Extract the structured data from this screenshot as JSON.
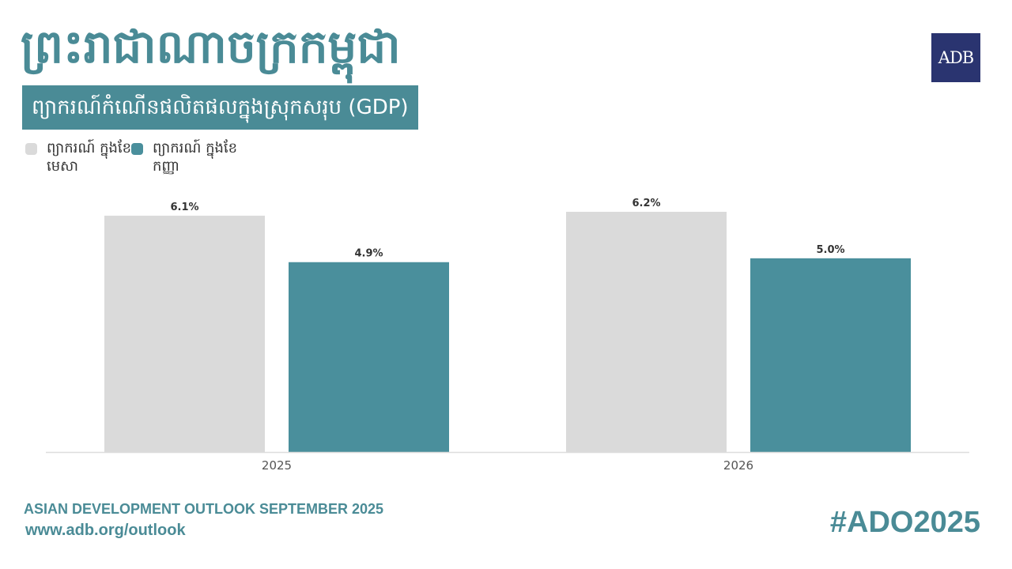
{
  "header": {
    "title": "ព្រះរាជាណាចក្រកម្ពុជា",
    "subtitle": "ព្យាករណ៍កំណើនផលិតផលក្នុងស្រុកសរុប (GDP)",
    "logo_text": "ADB"
  },
  "legend": [
    {
      "label": "ព្យាករណ៍ ក្នុងខែមេសា",
      "color": "#dadada"
    },
    {
      "label": "ព្យាករណ៍ ក្នុងខែកញ្ញា",
      "color": "#4a8f9c"
    }
  ],
  "chart_data": {
    "type": "bar",
    "categories": [
      "2025",
      "2026"
    ],
    "series": [
      {
        "name": "ព្យាករណ៍ ក្នុងខែមេសា",
        "values": [
          6.1,
          6.2
        ],
        "labels": [
          "6.1%",
          "6.2%"
        ],
        "color": "#dadada"
      },
      {
        "name": "ព្យាករណ៍ ក្នុងខែកញ្ញា",
        "values": [
          4.9,
          5.0
        ],
        "labels": [
          "4.9%",
          "5.0%"
        ],
        "color": "#4a8f9c"
      }
    ],
    "ylim": [
      0,
      6.2
    ],
    "grid": false
  },
  "footer": {
    "publication": "ASIAN DEVELOPMENT OUTLOOK SEPTEMBER 2025",
    "url": "www.adb.org/outlook",
    "hashtag": "#ADO2025"
  }
}
